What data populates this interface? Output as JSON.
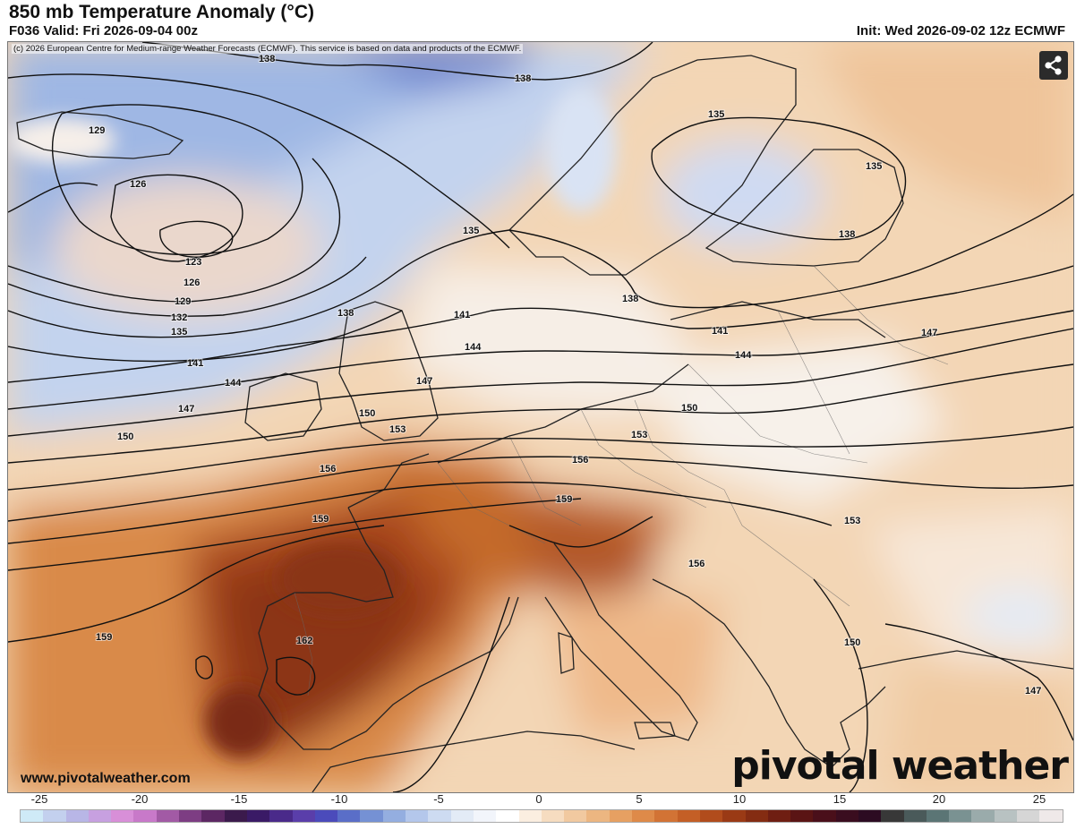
{
  "header": {
    "title": "850 mb Temperature Anomaly (°C)",
    "valid": "F036 Valid: Fri 2026-09-04 00z",
    "init": "Init: Wed 2026-09-02 12z ECMWF"
  },
  "map": {
    "copyright": "(c) 2026 European Centre for Medium-range Weather Forecasts (ECMWF). This service is based on data and products of the ECMWF.",
    "website": "www.pivotalweather.com",
    "brand": "pivotal weather",
    "share_icon": "share-icon",
    "contour_labels": [
      "138",
      "138",
      "129",
      "126",
      "123",
      "126",
      "129",
      "132",
      "135",
      "135",
      "135",
      "138",
      "138",
      "141",
      "141",
      "144",
      "144",
      "147",
      "147",
      "150",
      "150",
      "150",
      "153",
      "153",
      "156",
      "156",
      "156",
      "159",
      "159",
      "159",
      "162",
      "153",
      "150",
      "147",
      "141",
      "138",
      "135",
      "144",
      "147"
    ]
  },
  "colorbar": {
    "ticks": [
      "-25",
      "-20",
      "-15",
      "-10",
      "-5",
      "0",
      "5",
      "10",
      "15",
      "20",
      "25"
    ],
    "colors": [
      "#cfeaf7",
      "#c3d0ee",
      "#b8b6e6",
      "#c7a0e0",
      "#d88fd8",
      "#c879c9",
      "#a25aa5",
      "#7d3d83",
      "#5c2763",
      "#3b1a4c",
      "#3a1a66",
      "#4a2a8a",
      "#5a3eaa",
      "#4b4bbb",
      "#5a6ec8",
      "#7591d4",
      "#94aee0",
      "#b4c7eb",
      "#cddbf1",
      "#e3ebf6",
      "#f2f5fb",
      "#ffffff",
      "#fbeee0",
      "#f6dcc0",
      "#f1c9a0",
      "#ecb681",
      "#e6a062",
      "#de8a49",
      "#d27335",
      "#c45f26",
      "#b14c1c",
      "#9a3a15",
      "#842c12",
      "#6f1e12",
      "#5a1414",
      "#4a0f1a",
      "#3a0d1f",
      "#2c0b22",
      "#383838",
      "#4a5a5a",
      "#5b7575",
      "#7a9292",
      "#9aabab",
      "#b8c2c2",
      "#d6d6d6",
      "#efe9e9"
    ]
  }
}
